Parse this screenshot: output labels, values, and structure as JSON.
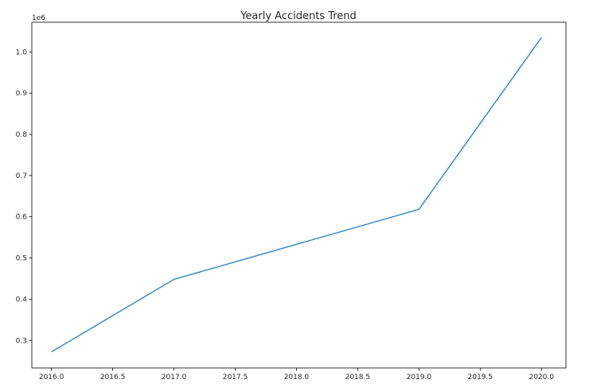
{
  "chart_data": {
    "type": "line",
    "title": "Yearly Accidents Trend",
    "xlabel": "",
    "ylabel": "",
    "y_offset_label": "1e6",
    "x": [
      2016,
      2017,
      2019,
      2020
    ],
    "series": [
      {
        "values": [
          272000,
          448000,
          618000,
          1035000
        ],
        "color": "#3b8bc4"
      }
    ],
    "xlim": [
      2015.84,
      2020.2
    ],
    "ylim": [
      233000,
      1072000
    ],
    "x_ticks": [
      2016.0,
      2016.5,
      2017.0,
      2017.5,
      2018.0,
      2018.5,
      2019.0,
      2019.5,
      2020.0
    ],
    "x_tick_labels": [
      "2016.0",
      "2016.5",
      "2017.0",
      "2017.5",
      "2018.0",
      "2018.5",
      "2019.0",
      "2019.5",
      "2020.0"
    ],
    "y_ticks": [
      300000,
      400000,
      500000,
      600000,
      700000,
      800000,
      900000,
      1000000
    ],
    "y_tick_labels": [
      "0.3",
      "0.4",
      "0.5",
      "0.6",
      "0.7",
      "0.8",
      "0.9",
      "1.0"
    ],
    "grid": false,
    "legend": "none"
  }
}
